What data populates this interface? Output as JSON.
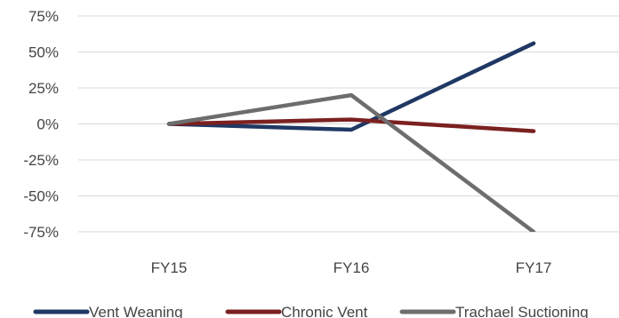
{
  "chart_data": {
    "type": "line",
    "categories": [
      "FY15",
      "FY16",
      "FY17"
    ],
    "series": [
      {
        "name": "Vent Weaning",
        "values": [
          0,
          -4,
          56
        ],
        "color": "#1f3864"
      },
      {
        "name": "Chronic Vent",
        "values": [
          0,
          3,
          -5
        ],
        "color": "#7b2020"
      },
      {
        "name": "Trachael Suctioning",
        "values": [
          0,
          20,
          -75
        ],
        "color": "#6d6d6d"
      }
    ],
    "ylim": [
      -75,
      75
    ],
    "yticks": [
      75,
      50,
      25,
      0,
      -25,
      -50,
      -75
    ],
    "ytick_format": "percent",
    "grid": true,
    "legend": "bottom"
  }
}
